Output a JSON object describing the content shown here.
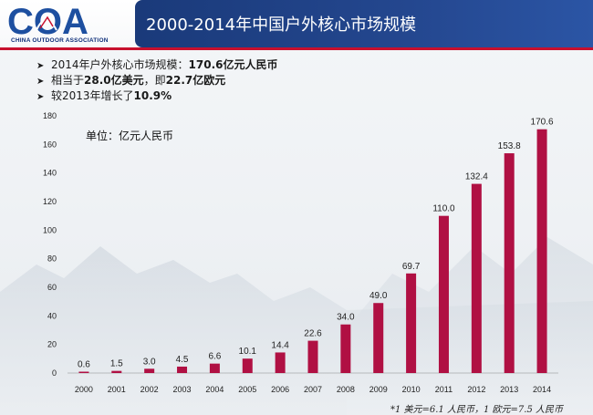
{
  "header": {
    "logo_letters": "COA",
    "logo_subtitle": "CHINA OUTDOOR ASSOCIATION",
    "title": "2000-2014年中国户外核心市场规模"
  },
  "bullets": [
    {
      "pre": "2014年户外核心市场规模：",
      "bold": "170.6亿元人民币",
      "post": ""
    },
    {
      "pre": "相当于",
      "bold": "28.0亿美元",
      "mid": "，即",
      "bold2": "22.7亿欧元"
    },
    {
      "pre": "较2013年增长了",
      "bold": "10.9%",
      "post": ""
    }
  ],
  "footnote": "*1 美元=6.1 人民币，1 欧元=7.5 人民币",
  "colors": {
    "bar": "#b01043",
    "title_bg": "#24478f",
    "accent_red": "#c8102e"
  },
  "chart_data": {
    "type": "bar",
    "unit_label": "单位：亿元人民币",
    "categories": [
      "2000",
      "2001",
      "2002",
      "2003",
      "2004",
      "2005",
      "2006",
      "2007",
      "2008",
      "2009",
      "2010",
      "2011",
      "2012",
      "2013",
      "2014"
    ],
    "values": [
      0.6,
      1.5,
      3.0,
      4.5,
      6.6,
      10.1,
      14.4,
      22.6,
      34.0,
      49.0,
      69.7,
      110.0,
      132.4,
      153.8,
      170.6
    ],
    "value_labels": [
      "0.6",
      "1.5",
      "3.0",
      "4.5",
      "6.6",
      "10.1",
      "14.4",
      "22.6",
      "34.0",
      "49.0",
      "69.7",
      "110.0",
      "132.4",
      "153.8",
      "170.6"
    ],
    "y_ticks": [
      0,
      20,
      40,
      60,
      80,
      100,
      120,
      140,
      160,
      180
    ],
    "ylim": [
      0,
      180
    ],
    "grid": false,
    "legend": "none"
  }
}
